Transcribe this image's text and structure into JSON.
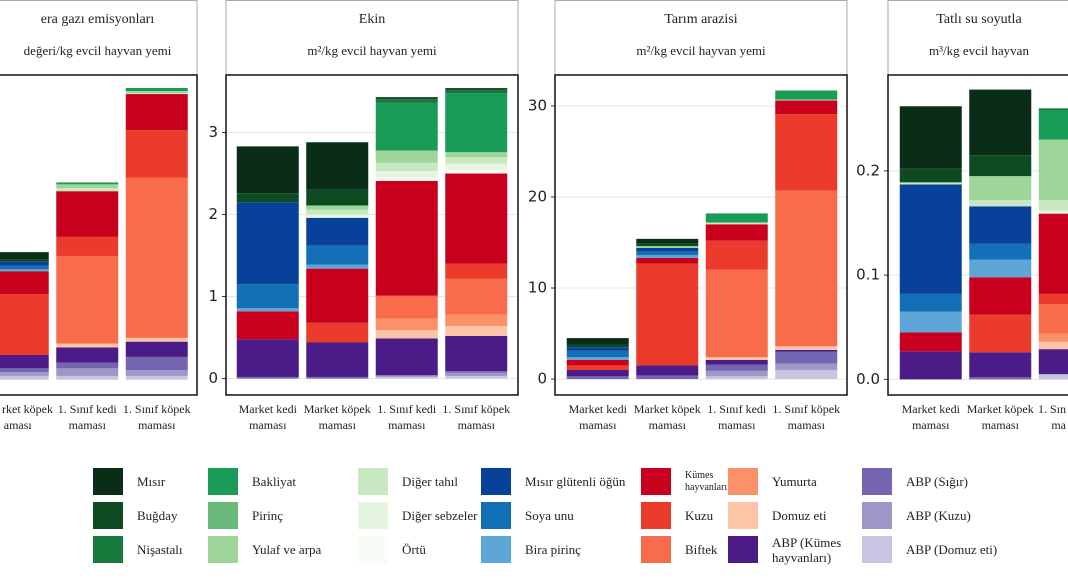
{
  "chart_data": [
    {
      "type": "bar",
      "stacked": true,
      "title": "era gazı emisyonları",
      "subtitle": "değeri/kg evcil hayvan yemi",
      "categories": [
        [
          "rket köpek",
          "aması"
        ],
        [
          "1. Sınıf kedi",
          "maması"
        ],
        [
          "1. Sınıf köpek",
          "maması"
        ]
      ],
      "ylim": [
        -0.4,
        8
      ],
      "yticks": [],
      "grid": true,
      "series": [
        {
          "name": "Mısır",
          "color": "#0a2d17",
          "values": [
            0.2,
            0,
            0
          ]
        },
        {
          "name": "Buğday",
          "color": "#0e4a22",
          "values": [
            0.05,
            0,
            0
          ]
        },
        {
          "name": "Nişastalı",
          "color": "#167a3c",
          "values": [
            0,
            0,
            0
          ]
        },
        {
          "name": "Bakliyat",
          "color": "#1a9b57",
          "values": [
            0,
            0.05,
            0.08
          ]
        },
        {
          "name": "Pirinç",
          "color": "#6ab97b",
          "values": [
            0,
            0,
            0
          ]
        },
        {
          "name": "Yulaf ve arpa",
          "color": "#9ed59a",
          "values": [
            0,
            0.1,
            0.05
          ]
        },
        {
          "name": "Diğer tahıl",
          "color": "#c7e8c1",
          "values": [
            0,
            0.08,
            0.03
          ]
        },
        {
          "name": "Diğer sebzeler",
          "color": "#e5f5e0",
          "values": [
            0,
            0,
            0
          ]
        },
        {
          "name": "Örtü",
          "color": "#f7fcf5",
          "values": [
            0,
            0,
            0
          ]
        },
        {
          "name": "Mısır glütenli öğün",
          "color": "#08419a",
          "values": [
            0.1,
            0,
            0
          ]
        },
        {
          "name": "Soya unu",
          "color": "#1470b6",
          "values": [
            0.1,
            0,
            0
          ]
        },
        {
          "name": "Bira pirinç",
          "color": "#5ea5d8",
          "values": [
            0.05,
            0,
            0
          ]
        },
        {
          "name": "Kümes hayvanları",
          "color": "#c8001e",
          "values": [
            0.6,
            1.2,
            0.95
          ]
        },
        {
          "name": "Kuzu",
          "color": "#ea3b2c",
          "values": [
            1.6,
            0.5,
            1.25
          ]
        },
        {
          "name": "Biftek",
          "color": "#f86c4c",
          "values": [
            0,
            2.3,
            4.2
          ]
        },
        {
          "name": "Yumurta",
          "color": "#fc9068",
          "values": [
            0,
            0,
            0
          ]
        },
        {
          "name": "Domuz eti",
          "color": "#fdc4a6",
          "values": [
            0,
            0.1,
            0.1
          ]
        },
        {
          "name": "ABP (Kümes hayvanları)",
          "color": "#4b1c88",
          "values": [
            0.35,
            0.4,
            0.4
          ]
        },
        {
          "name": "ABP (Sığır)",
          "color": "#7565b1",
          "values": [
            0.1,
            0.15,
            0.35
          ]
        },
        {
          "name": "ABP (Kuzu)",
          "color": "#9e98c8",
          "values": [
            0.1,
            0.2,
            0.15
          ]
        },
        {
          "name": "ABP (Domuz eti)",
          "color": "#c8c5e2",
          "values": [
            0.1,
            0.1,
            0.1
          ]
        }
      ]
    },
    {
      "type": "bar",
      "stacked": true,
      "title": "Ekin",
      "subtitle": "m²/kg evcil hayvan yemi",
      "categories": [
        [
          "Market kedi",
          "maması"
        ],
        [
          "Market köpek",
          "maması"
        ],
        [
          "1. Sınıf kedi",
          "maması"
        ],
        [
          "1. Sınıf köpek",
          "maması"
        ]
      ],
      "ylim": [
        -0.2,
        3.7
      ],
      "yticks": [
        0,
        1,
        2,
        3
      ],
      "grid": true,
      "series": [
        {
          "values": [
            0.57,
            0.57,
            0.02,
            0.02
          ]
        },
        {
          "values": [
            0.11,
            0.2,
            0,
            0
          ]
        },
        {
          "values": [
            0,
            0,
            0.05,
            0.04
          ]
        },
        {
          "values": [
            0,
            0,
            0.58,
            0.72
          ]
        },
        {
          "values": [
            0,
            0,
            0,
            0
          ]
        },
        {
          "values": [
            0,
            0.05,
            0.15,
            0.06
          ]
        },
        {
          "values": [
            0,
            0.06,
            0.1,
            0.08
          ]
        },
        {
          "values": [
            0,
            0.04,
            0.08,
            0.08
          ]
        },
        {
          "values": [
            0,
            0,
            0.04,
            0.04
          ]
        },
        {
          "values": [
            1.0,
            0.34,
            0,
            0
          ]
        },
        {
          "values": [
            0.29,
            0.23,
            0,
            0
          ]
        },
        {
          "values": [
            0.04,
            0.05,
            0,
            0
          ]
        },
        {
          "values": [
            0.34,
            0.66,
            1.4,
            1.1
          ]
        },
        {
          "values": [
            0,
            0.24,
            0,
            0.18
          ]
        },
        {
          "values": [
            0,
            0,
            0.28,
            0.44
          ]
        },
        {
          "values": [
            0,
            0,
            0.14,
            0.14
          ]
        },
        {
          "values": [
            0,
            0,
            0.1,
            0.12
          ]
        },
        {
          "values": [
            0.46,
            0.42,
            0.45,
            0.43
          ]
        },
        {
          "values": [
            0.02,
            0.02,
            0,
            0.02
          ]
        },
        {
          "values": [
            0,
            0,
            0.02,
            0.04
          ]
        },
        {
          "values": [
            0,
            0,
            0.02,
            0.03
          ]
        }
      ]
    },
    {
      "type": "bar",
      "stacked": true,
      "title": "Tarım arazisi",
      "subtitle": "m²/kg evcil hayvan yemi",
      "categories": [
        [
          "Market kedi",
          "maması"
        ],
        [
          "Market köpek",
          "maması"
        ],
        [
          "1. Sınıf kedi",
          "maması"
        ],
        [
          "1. Sınıf köpek",
          "maması"
        ]
      ],
      "ylim": [
        -1.75,
        33.4
      ],
      "yticks": [
        0,
        10,
        20,
        30
      ],
      "grid": true,
      "series": [
        {
          "values": [
            0.7,
            0.5,
            0,
            0
          ]
        },
        {
          "values": [
            0.3,
            0.3,
            0,
            0
          ]
        },
        {
          "values": [
            0,
            0,
            0,
            0
          ]
        },
        {
          "values": [
            0,
            0,
            1.0,
            1.0
          ]
        },
        {
          "values": [
            0,
            0,
            0,
            0
          ]
        },
        {
          "values": [
            0,
            0.2,
            0,
            0
          ]
        },
        {
          "values": [
            0,
            0,
            0.2,
            0.1
          ]
        },
        {
          "values": [
            0,
            0,
            0,
            0
          ]
        },
        {
          "values": [
            0,
            0,
            0,
            0
          ]
        },
        {
          "values": [
            0.4,
            0.4,
            0,
            0
          ]
        },
        {
          "values": [
            0.7,
            0.4,
            0,
            0
          ]
        },
        {
          "values": [
            0.3,
            0.3,
            0,
            0
          ]
        },
        {
          "values": [
            0.6,
            0.6,
            1.8,
            1.5
          ]
        },
        {
          "values": [
            0.5,
            11.2,
            3.2,
            8.4
          ]
        },
        {
          "values": [
            0,
            0,
            9.6,
            17.1
          ]
        },
        {
          "values": [
            0,
            0,
            0,
            0
          ]
        },
        {
          "values": [
            0,
            0,
            0.3,
            0.4
          ]
        },
        {
          "values": [
            0.7,
            1.1,
            0.5,
            0.2
          ]
        },
        {
          "values": [
            0.3,
            0.4,
            0.7,
            1.3
          ]
        },
        {
          "values": [
            0,
            0,
            0.6,
            0.7
          ]
        },
        {
          "values": [
            0,
            0,
            0.3,
            1.0
          ]
        }
      ]
    },
    {
      "type": "bar",
      "stacked": true,
      "title": "Tatlı su soyutla",
      "subtitle": "m³/kg evcil hayvan",
      "categories": [
        [
          "Market kedi",
          "maması"
        ],
        [
          "Market köpek",
          "maması"
        ],
        [
          "1. Sın",
          "ma"
        ]
      ],
      "ylim": [
        -0.015,
        0.292
      ],
      "yticks": [
        {
          "value": 0,
          "label": "0.0"
        },
        0.1,
        0.2
      ],
      "grid": true,
      "series": [
        {
          "values": [
            0.06,
            0.063,
            0
          ]
        },
        {
          "values": [
            0.013,
            0.02,
            0
          ]
        },
        {
          "values": [
            0,
            0,
            0.002
          ]
        },
        {
          "values": [
            0,
            0,
            0.028
          ]
        },
        {
          "values": [
            0,
            0,
            0
          ]
        },
        {
          "values": [
            0,
            0.023,
            0.058
          ]
        },
        {
          "values": [
            0.002,
            0.006,
            0.01
          ]
        },
        {
          "values": [
            0,
            0,
            0.003
          ]
        },
        {
          "values": [
            0,
            0,
            0
          ]
        },
        {
          "values": [
            0.105,
            0.036,
            0
          ]
        },
        {
          "values": [
            0.017,
            0.015,
            0
          ]
        },
        {
          "values": [
            0.02,
            0.017,
            0
          ]
        },
        {
          "values": [
            0.018,
            0.036,
            0.077
          ]
        },
        {
          "values": [
            0,
            0.036,
            0.01
          ]
        },
        {
          "values": [
            0,
            0,
            0.028
          ]
        },
        {
          "values": [
            0,
            0,
            0.008
          ]
        },
        {
          "values": [
            0,
            0,
            0.007
          ]
        },
        {
          "values": [
            0.027,
            0.024,
            0.024
          ]
        },
        {
          "values": [
            0,
            0.002,
            0
          ]
        },
        {
          "values": [
            0,
            0,
            0
          ]
        },
        {
          "values": [
            0,
            0,
            0.005
          ]
        }
      ]
    }
  ]
}
